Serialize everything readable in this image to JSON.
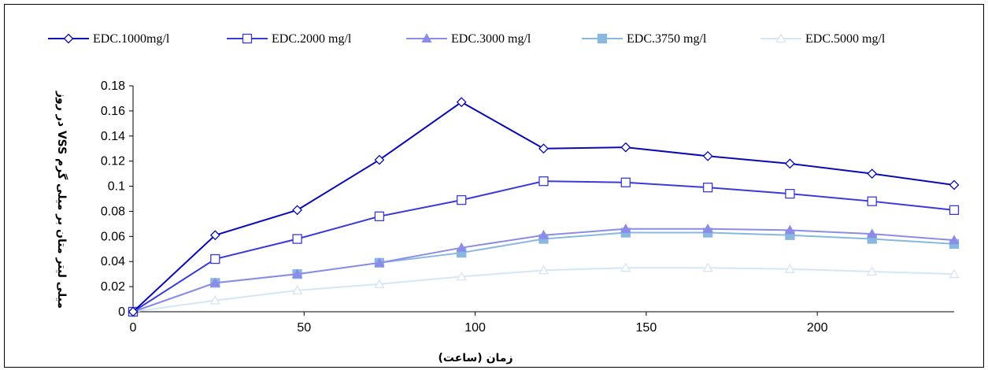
{
  "chart_data": {
    "type": "line",
    "xlabel": "زمان (ساعت)",
    "ylabel": "میلی لیتر متان بر میلی گرم VSS در روز",
    "xlim": [
      0,
      240
    ],
    "ylim": [
      0,
      0.18
    ],
    "x_ticks": [
      0,
      50,
      100,
      150,
      200
    ],
    "x_tick_labels": [
      "0",
      "50",
      "100",
      "150",
      "200"
    ],
    "y_ticks": [
      0,
      0.02,
      0.04,
      0.06,
      0.08,
      0.1,
      0.12,
      0.14,
      0.16,
      0.18
    ],
    "y_tick_labels": [
      "0",
      "0.02",
      "0.04",
      "0.06",
      "0.08",
      "0.1",
      "0.12",
      "0.14",
      "0.16",
      "0.18"
    ],
    "grid": false,
    "legend_position": "top",
    "x": [
      0,
      24,
      48,
      72,
      96,
      120,
      144,
      168,
      192,
      216,
      240
    ],
    "series": [
      {
        "name": "EDC.1000mg/l",
        "color": "#0a0ab4",
        "marker": "diamond-open",
        "values": [
          0,
          0.061,
          0.081,
          0.121,
          0.167,
          0.13,
          0.131,
          0.124,
          0.118,
          0.11,
          0.101
        ]
      },
      {
        "name": "EDC.2000 mg/l",
        "color": "#3a3ad8",
        "marker": "square-open",
        "values": [
          0,
          0.042,
          0.058,
          0.076,
          0.089,
          0.104,
          0.103,
          0.099,
          0.094,
          0.088,
          0.081
        ]
      },
      {
        "name": "EDC.3000 mg/l",
        "color": "#8c8ce8",
        "marker": "triangle-filled",
        "values": [
          0,
          0.023,
          0.03,
          0.039,
          0.051,
          0.061,
          0.066,
          0.066,
          0.065,
          0.062,
          0.057
        ]
      },
      {
        "name": "EDC.3750 mg/l",
        "color": "#88b8e0",
        "marker": "square-filled",
        "values": [
          0,
          0.023,
          0.03,
          0.039,
          0.047,
          0.058,
          0.063,
          0.063,
          0.061,
          0.058,
          0.054
        ]
      },
      {
        "name": "EDC.5000 mg/l",
        "color": "#d6e6f4",
        "marker": "triangle-open",
        "values": [
          0,
          0.009,
          0.017,
          0.022,
          0.028,
          0.033,
          0.035,
          0.035,
          0.034,
          0.032,
          0.03
        ]
      }
    ]
  }
}
